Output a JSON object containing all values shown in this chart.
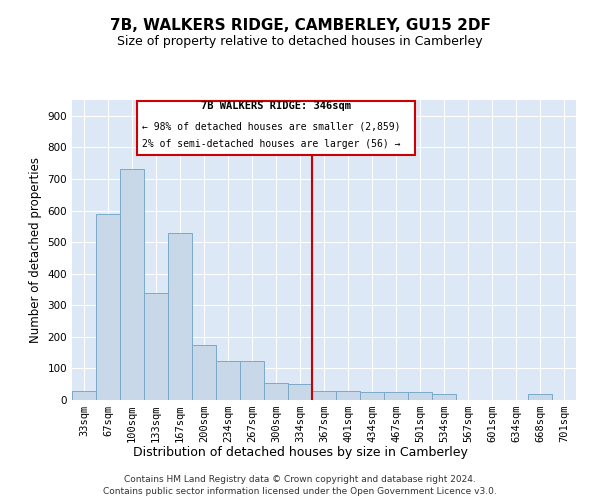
{
  "title": "7B, WALKERS RIDGE, CAMBERLEY, GU15 2DF",
  "subtitle": "Size of property relative to detached houses in Camberley",
  "xlabel": "Distribution of detached houses by size in Camberley",
  "ylabel": "Number of detached properties",
  "bar_labels": [
    "33sqm",
    "67sqm",
    "100sqm",
    "133sqm",
    "167sqm",
    "200sqm",
    "234sqm",
    "267sqm",
    "300sqm",
    "334sqm",
    "367sqm",
    "401sqm",
    "434sqm",
    "467sqm",
    "501sqm",
    "534sqm",
    "567sqm",
    "601sqm",
    "634sqm",
    "668sqm",
    "701sqm"
  ],
  "bar_values": [
    27,
    590,
    730,
    340,
    530,
    175,
    125,
    125,
    55,
    50,
    27,
    27,
    25,
    25,
    25,
    20,
    0,
    0,
    0,
    20,
    0
  ],
  "bar_color": "#c8d8e8",
  "bar_edge_color": "#7aaac8",
  "vline_color": "#cc0000",
  "vline_x": 9.5,
  "annotation_title": "7B WALKERS RIDGE: 346sqm",
  "annotation_line1": "← 98% of detached houses are smaller (2,859)",
  "annotation_line2": "2% of semi-detached houses are larger (56) →",
  "annotation_box_color": "#cc0000",
  "ylim_max": 950,
  "yticks": [
    0,
    100,
    200,
    300,
    400,
    500,
    600,
    700,
    800,
    900
  ],
  "footer1": "Contains HM Land Registry data © Crown copyright and database right 2024.",
  "footer2": "Contains public sector information licensed under the Open Government Licence v3.0.",
  "plot_bg_color": "#dce8f5",
  "grid_color": "#ffffff",
  "fig_bg_color": "#ffffff"
}
